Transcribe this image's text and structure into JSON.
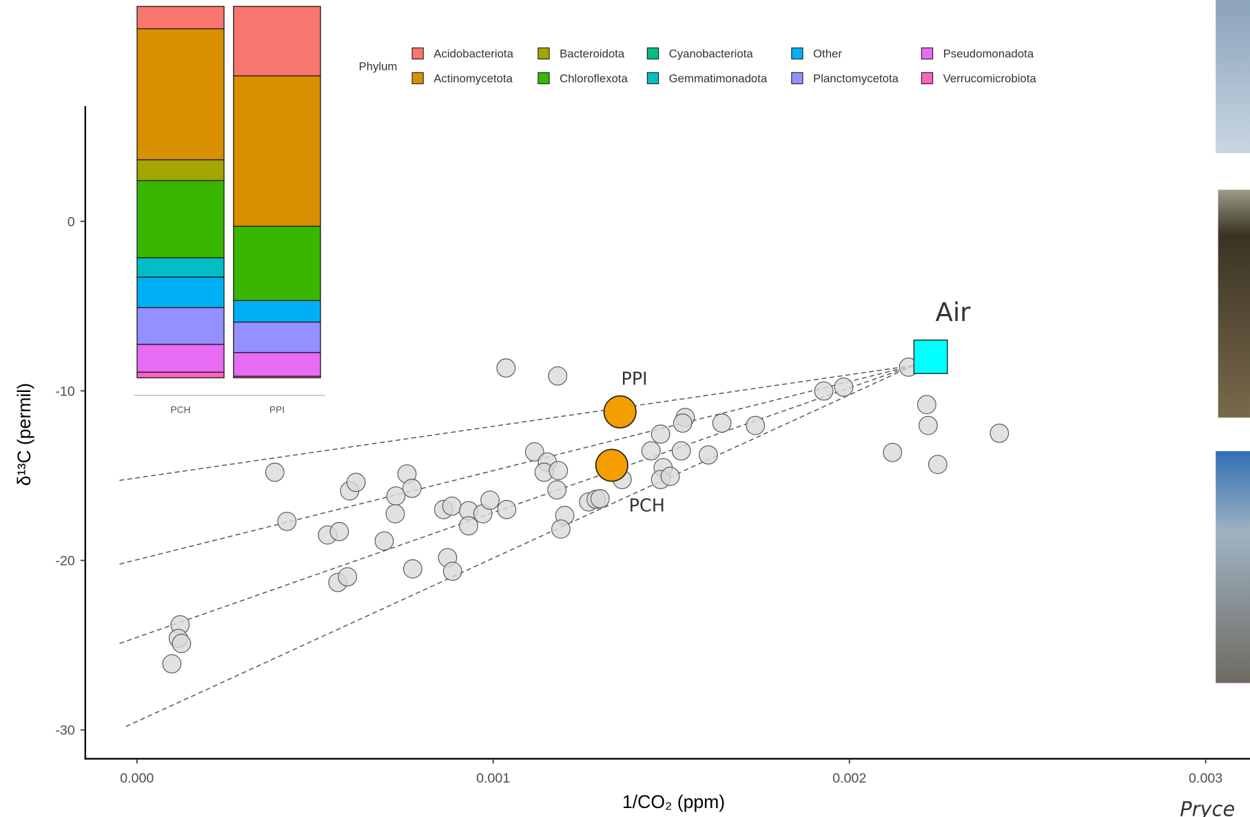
{
  "chart_data": [
    {
      "type": "scatter",
      "x_label": "1/CO₂ (ppm)",
      "y_label": "δ¹³C (permil)",
      "xlim": [
        -0.000145,
        0.00312
      ],
      "ylim": [
        -31.7,
        6.8
      ],
      "xticks": [
        {
          "value": 0,
          "label": "0.000"
        },
        {
          "value": 0.001,
          "label": "0.001"
        },
        {
          "value": 0.002,
          "label": "0.002"
        },
        {
          "value": 0.003,
          "label": "0.003"
        }
      ],
      "yticks": [
        0,
        -10,
        -20,
        -30
      ],
      "grid": false,
      "series": [
        {
          "color": "#d9d9d9",
          "x": [
            0.001036,
            0.001181,
            0.000387,
            0.000421,
            0.000535,
            0.000568,
            0.000597,
            0.000615,
            0.000758,
            0.000727,
            0.000772,
            0.000725,
            0.000694,
            0.000774,
            0.000564,
            0.000591,
            0.000861,
            0.000884,
            0.000931,
            0.000931,
            0.000971,
            0.000991,
            0.001038,
            0.000872,
            0.000886,
            0.000121,
            0.000116,
            0.000125,
            9.8e-05,
            0.001116,
            0.001152,
            0.001143,
            0.001183,
            0.001179,
            0.001201,
            0.00119,
            0.001268,
            0.001289,
            0.0013,
            0.001362,
            0.001443,
            0.00147,
            0.001539,
            0.001532,
            0.001477,
            0.00147,
            0.001497,
            0.001528,
            0.001604,
            0.001642,
            0.001736,
            0.001928,
            0.001984,
            0.002166,
            0.002217,
            0.002221,
            0.002121,
            0.002248,
            0.002421
          ],
          "y": [
            -8.65,
            -9.12,
            -14.8,
            -17.7,
            -18.5,
            -18.3,
            -15.9,
            -15.4,
            -14.9,
            -16.2,
            -15.75,
            -17.25,
            -18.85,
            -20.5,
            -21.3,
            -20.97,
            -17.0,
            -16.8,
            -17.07,
            -17.96,
            -17.25,
            -16.45,
            -17.0,
            -19.84,
            -20.64,
            -23.8,
            -24.6,
            -24.9,
            -26.1,
            -13.6,
            -14.2,
            -14.8,
            -14.7,
            -15.84,
            -17.35,
            -18.15,
            -16.55,
            -16.4,
            -16.36,
            -15.23,
            -13.54,
            -12.55,
            -11.57,
            -11.9,
            -14.53,
            -15.23,
            -15.04,
            -13.54,
            -13.78,
            -11.9,
            -12.04,
            -10.01,
            -9.78,
            -8.6,
            -10.81,
            -12.04,
            -13.63,
            -14.34,
            -12.5
          ]
        }
      ],
      "mixing_lines": [
        {
          "x": [
            -4.9e-05,
            0.00218
          ],
          "y": [
            -15.28,
            -8.5
          ]
        },
        {
          "x": [
            -4.9e-05,
            0.00218
          ],
          "y": [
            -20.22,
            -8.5
          ]
        },
        {
          "x": [
            -4.9e-05,
            0.00218
          ],
          "y": [
            -24.9,
            -8.5
          ]
        },
        {
          "x": [
            -3.1e-05,
            0.00218
          ],
          "y": [
            -29.8,
            -8.5
          ]
        }
      ],
      "reference_points": [
        {
          "label": "PPI",
          "x": 0.001356,
          "y": -11.24,
          "color": "#f59e00",
          "marker": "circle"
        },
        {
          "label": "PCH",
          "x": 0.001333,
          "y": -14.39,
          "color": "#f59e00",
          "marker": "circle"
        },
        {
          "label": "Air",
          "x": 0.002228,
          "y": -7.99,
          "color": "#00ffff",
          "marker": "square"
        }
      ],
      "corner_text": "Pryce"
    },
    {
      "type": "bar",
      "stacked": true,
      "categories": [
        "PCH",
        "PPI"
      ],
      "ylim": [
        0,
        100
      ],
      "legend_title": "Phylum",
      "series": [
        {
          "name": "Acidobacteriota",
          "color": "#f8766d",
          "values": [
            6.0,
            18.7
          ]
        },
        {
          "name": "Actinomycetota",
          "color": "#d89000",
          "values": [
            35.3,
            40.5
          ]
        },
        {
          "name": "Bacteroidota",
          "color": "#a3a500",
          "values": [
            5.6,
            0
          ]
        },
        {
          "name": "Chloroflexota",
          "color": "#39b600",
          "values": [
            20.8,
            20.0
          ]
        },
        {
          "name": "Cyanobacteriota",
          "color": "#00bf7d",
          "values": [
            0,
            0
          ]
        },
        {
          "name": "Gemmatimonadota",
          "color": "#00bfc4",
          "values": [
            5.2,
            0
          ]
        },
        {
          "name": "Other",
          "color": "#00b0f6",
          "values": [
            8.2,
            5.8
          ]
        },
        {
          "name": "Planctomycetota",
          "color": "#9590ff",
          "values": [
            9.9,
            8.2
          ]
        },
        {
          "name": "Pseudomonadota",
          "color": "#e76bf3",
          "values": [
            7.5,
            6.4
          ]
        },
        {
          "name": "Verrucomicrobiota",
          "color": "#ff62bc",
          "values": [
            1.5,
            0.4
          ]
        }
      ]
    }
  ]
}
